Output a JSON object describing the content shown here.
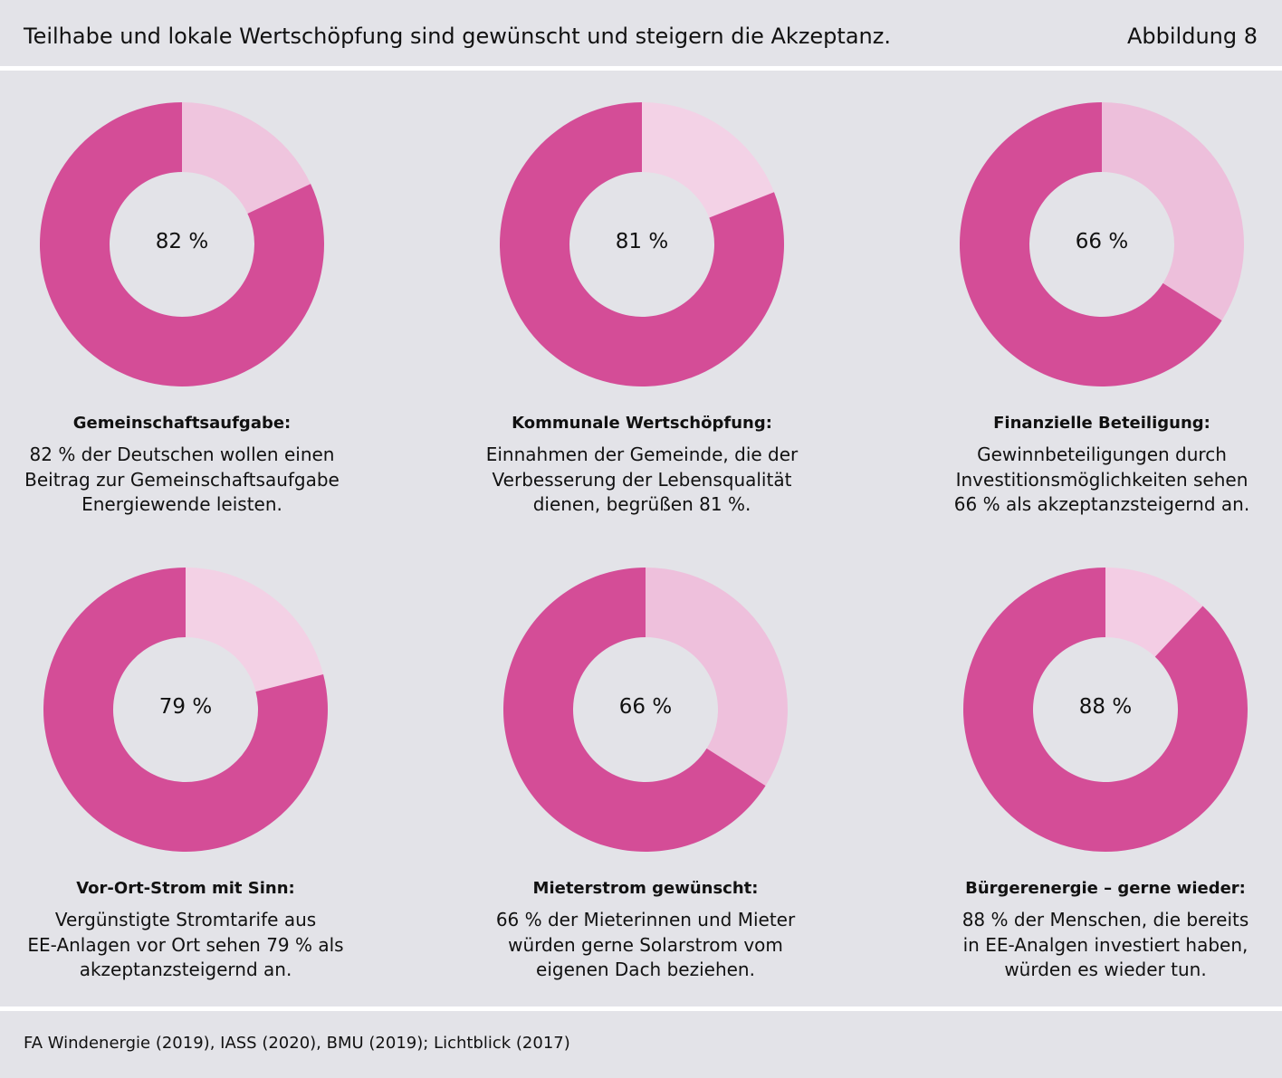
{
  "header": {
    "title": "Teilhabe und lokale Wertschöpfung sind gewünscht und steigern die Akzeptanz.",
    "figure_label": "Abbildung 8"
  },
  "colors": {
    "background": "#e3e3e8",
    "divider": "#ffffff",
    "text": "#111111"
  },
  "chart_data": [
    {
      "type": "pie",
      "values": [
        82,
        18
      ],
      "colors": [
        "#d44d97",
        "#efc5de"
      ],
      "center_label": "82 %",
      "title": "Gemeinschaftsaufgabe:",
      "caption": [
        "82 % der Deutschen wollen einen",
        "Beitrag zur Gemeinschaftsaufgabe",
        "Energiewende leisten."
      ]
    },
    {
      "type": "pie",
      "values": [
        81,
        19
      ],
      "colors": [
        "#d44d97",
        "#f3d2e6"
      ],
      "center_label": "81 %",
      "title": "Kommunale Wertschöpfung:",
      "caption": [
        "Einnahmen der Gemeinde, die der",
        "Verbesserung der Lebensqualität",
        "dienen, begrüßen 81 %."
      ]
    },
    {
      "type": "pie",
      "values": [
        66,
        34
      ],
      "colors": [
        "#d44d97",
        "#edbfdb"
      ],
      "center_label": "66 %",
      "title": "Finanzielle Beteiligung:",
      "caption": [
        "Gewinnbeteiligungen durch",
        "Investitionsmöglichkeiten sehen",
        "66 % als akzeptanzsteigernd an."
      ]
    },
    {
      "type": "pie",
      "values": [
        79,
        21
      ],
      "colors": [
        "#d44d97",
        "#f3d1e5"
      ],
      "center_label": "79 %",
      "title": "Vor-Ort-Strom mit Sinn:",
      "caption": [
        "Vergünstigte Stromtarife aus",
        "EE-Anlagen vor Ort sehen 79 % als",
        "akzeptanzsteigernd an."
      ]
    },
    {
      "type": "pie",
      "values": [
        66,
        34
      ],
      "colors": [
        "#d44d97",
        "#eec0dc"
      ],
      "center_label": "66 %",
      "title": "Mieterstrom gewünscht:",
      "caption": [
        "66 % der Mieterinnen und Mieter",
        "würden gerne Solarstrom vom",
        "eigenen Dach beziehen."
      ]
    },
    {
      "type": "pie",
      "values": [
        88,
        12
      ],
      "colors": [
        "#d44d97",
        "#f3cde4"
      ],
      "center_label": "88 %",
      "title": "Bürgerenergie – gerne wieder:",
      "caption": [
        "88 % der Menschen, die bereits",
        "in EE-Analgen investiert haben,",
        "würden es wieder tun."
      ]
    }
  ],
  "source": "FA Windenergie (2019), IASS (2020), BMU (2019); Lichtblick (2017)"
}
